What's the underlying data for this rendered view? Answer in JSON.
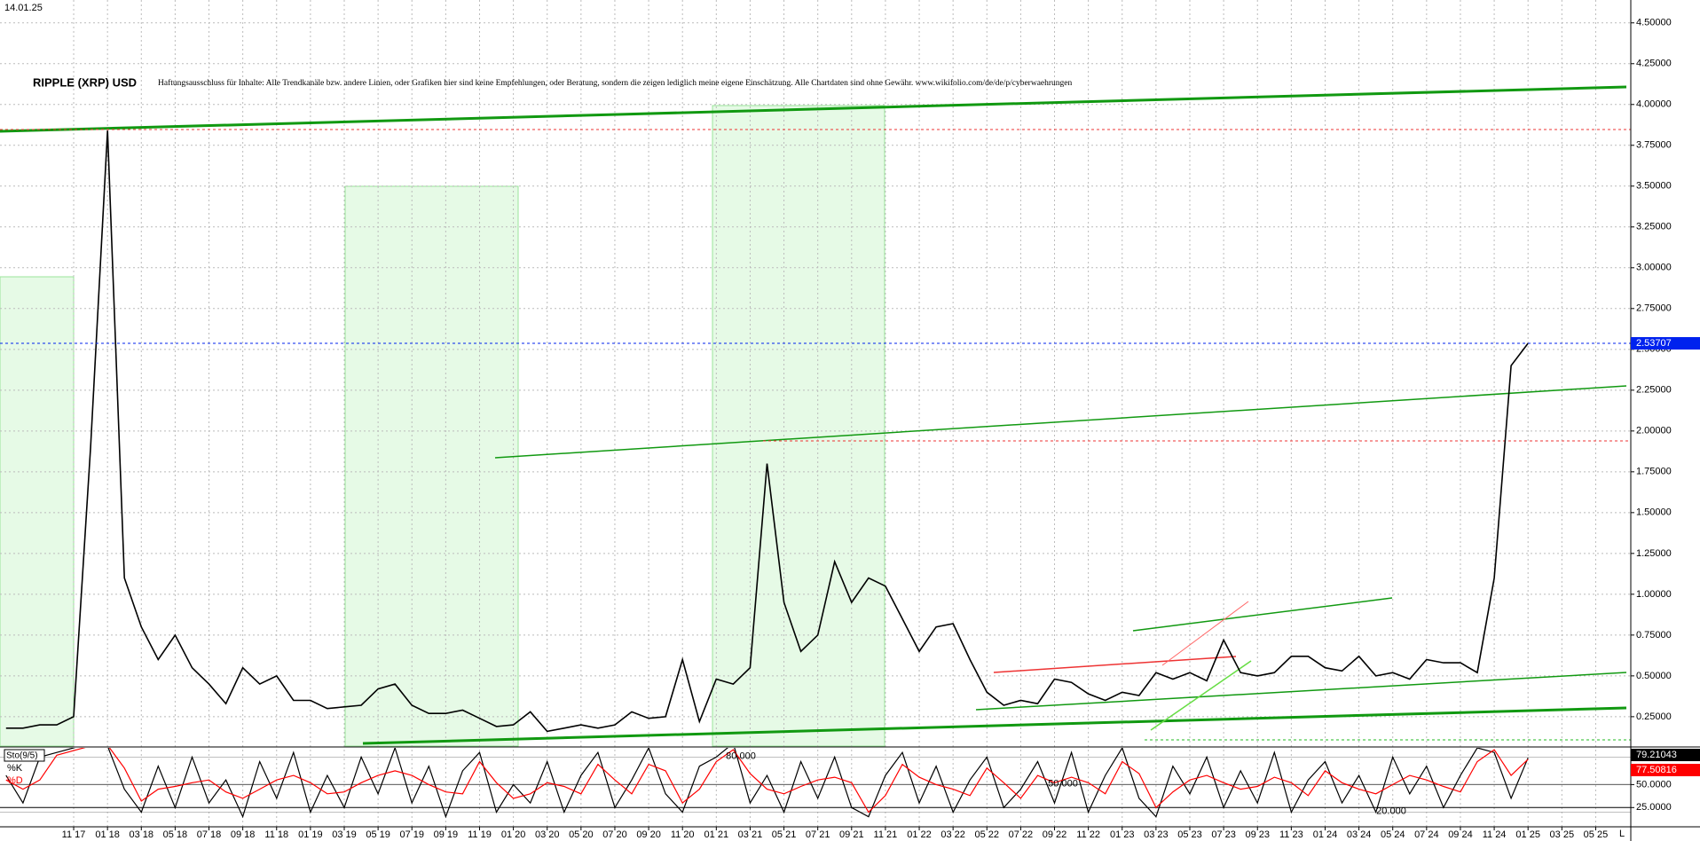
{
  "chart_data": [
    {
      "type": "line",
      "title": "RIPPLE (XRP) USD",
      "subtitle": "Haftungsausschluss für Inhalte: Alle Trendkanäle bzw. andere Linien, oder Grafiken hier sind keine Empfehlungen, oder Beratung, sondern die zeigen lediglich meine eigene Einschätzung. Alle Chartdaten sind ohne Gewähr. www.wikifolio.com/de/de/p/cyberwaehrungen",
      "date": "14.01.25",
      "corner_label": "L",
      "categories": [
        null,
        null,
        null,
        null,
        "11 17",
        null,
        "01 18",
        null,
        "03 18",
        null,
        "05 18",
        null,
        "07 18",
        null,
        "09 18",
        null,
        "11 18",
        null,
        "01 19",
        null,
        "03 19",
        null,
        "05 19",
        null,
        "07 19",
        null,
        "09 19",
        null,
        "11 19",
        null,
        "01 20",
        null,
        "03 20",
        null,
        "05 20",
        null,
        "07 20",
        null,
        "09 20",
        null,
        "11 20",
        null,
        "01 21",
        null,
        "03 21",
        null,
        "05 21",
        null,
        "07 21",
        null,
        "09 21",
        null,
        "11 21",
        null,
        "01 22",
        null,
        "03 22",
        null,
        "05 22",
        null,
        "07 22",
        null,
        "09 22",
        null,
        "11 22",
        null,
        "01 23",
        null,
        "03 23",
        null,
        "05 23",
        null,
        "07 23",
        null,
        "09 23",
        null,
        "11 23",
        null,
        "01 24",
        null,
        "03 24",
        null,
        "05 24",
        null,
        "07 24",
        null,
        "09 24",
        null,
        "11 24",
        null,
        "01 25",
        null,
        "03 25",
        null,
        "05 25"
      ],
      "series": [
        {
          "name": "XRP",
          "color": "#000000",
          "values": [
            0.18,
            0.18,
            0.2,
            0.2,
            0.25,
            1.9,
            3.84,
            1.1,
            0.8,
            0.6,
            0.75,
            0.55,
            0.45,
            0.33,
            0.55,
            0.45,
            0.5,
            0.35,
            0.35,
            0.3,
            0.31,
            0.32,
            0.42,
            0.45,
            0.32,
            0.27,
            0.27,
            0.29,
            0.24,
            0.19,
            0.2,
            0.28,
            0.16,
            0.18,
            0.2,
            0.18,
            0.2,
            0.28,
            0.24,
            0.25,
            0.6,
            0.22,
            0.48,
            0.45,
            0.55,
            1.8,
            0.95,
            0.65,
            0.75,
            1.2,
            0.95,
            1.1,
            1.05,
            0.85,
            0.65,
            0.8,
            0.82,
            0.6,
            0.4,
            0.32,
            0.35,
            0.33,
            0.48,
            0.46,
            0.39,
            0.35,
            0.4,
            0.38,
            0.52,
            0.48,
            0.52,
            0.47,
            0.72,
            0.52,
            0.5,
            0.52,
            0.62,
            0.62,
            0.55,
            0.53,
            0.62,
            0.5,
            0.52,
            0.48,
            0.6,
            0.58,
            0.58,
            0.52,
            1.1,
            2.4,
            2.53707,
            null,
            null,
            null,
            null
          ]
        }
      ],
      "ylim": [
        0.07,
        4.64
      ],
      "yticks": [
        {
          "value": 4.5,
          "label": "4.50000"
        },
        {
          "value": 4.25,
          "label": "4.25000"
        },
        {
          "value": 4,
          "label": "4.00000"
        },
        {
          "value": 3.75,
          "label": "3.75000"
        },
        {
          "value": 3.5,
          "label": "3.50000"
        },
        {
          "value": 3.25,
          "label": "3.25000"
        },
        {
          "value": 3,
          "label": "3.00000"
        },
        {
          "value": 2.75,
          "label": "2.75000"
        },
        {
          "value": 2.5,
          "label": "2.50000"
        },
        {
          "value": 2.25,
          "label": "2.25000"
        },
        {
          "value": 2,
          "label": "2.00000"
        },
        {
          "value": 1.75,
          "label": "1.75000"
        },
        {
          "value": 1.5,
          "label": "1.50000"
        },
        {
          "value": 1.25,
          "label": "1.25000"
        },
        {
          "value": 1,
          "label": "1.00000"
        },
        {
          "value": 0.75,
          "label": "0.75000"
        },
        {
          "value": 0.5,
          "label": "0.50000"
        },
        {
          "value": 0.25,
          "label": "0.25000"
        }
      ],
      "grid": true
    },
    {
      "type": "line",
      "title": "Sto(9/5)",
      "series": [
        {
          "name": "%K",
          "color": "#000000",
          "values": [
            60,
            30,
            80,
            85,
            90,
            95,
            92,
            45,
            20,
            70,
            25,
            80,
            30,
            55,
            15,
            75,
            35,
            85,
            20,
            60,
            25,
            80,
            40,
            90,
            30,
            70,
            15,
            65,
            85,
            20,
            50,
            30,
            75,
            20,
            60,
            85,
            25,
            55,
            90,
            40,
            20,
            70,
            80,
            95,
            30,
            60,
            20,
            75,
            35,
            80,
            25,
            15,
            60,
            85,
            30,
            70,
            20,
            55,
            80,
            25,
            45,
            75,
            30,
            85,
            20,
            60,
            90,
            35,
            15,
            70,
            40,
            80,
            25,
            65,
            30,
            85,
            20,
            55,
            75,
            30,
            60,
            20,
            80,
            40,
            70,
            25,
            60,
            90,
            85,
            35,
            79.21043,
            null,
            null,
            null,
            null
          ]
        },
        {
          "name": "%D",
          "color": "#ff0000",
          "values": [
            55,
            45,
            55,
            82,
            87,
            92,
            93,
            68,
            32,
            45,
            48,
            52,
            55,
            42,
            35,
            45,
            55,
            60,
            52,
            40,
            42,
            52,
            60,
            65,
            60,
            50,
            42,
            40,
            75,
            52,
            35,
            40,
            52,
            48,
            40,
            72,
            55,
            40,
            72,
            65,
            30,
            45,
            75,
            88,
            62,
            45,
            40,
            48,
            55,
            58,
            52,
            20,
            38,
            72,
            58,
            50,
            45,
            38,
            68,
            52,
            35,
            60,
            52,
            58,
            52,
            40,
            75,
            62,
            25,
            42,
            55,
            60,
            52,
            45,
            48,
            58,
            52,
            38,
            65,
            52,
            45,
            40,
            50,
            60,
            55,
            48,
            42,
            75,
            88,
            60,
            77.50816,
            null,
            null,
            null,
            null
          ]
        }
      ],
      "ylim": [
        5,
        90
      ],
      "yticks": [
        {
          "value": 50,
          "label": "50.0000"
        },
        {
          "value": 25,
          "label": "25.0000"
        }
      ],
      "levels": [
        {
          "value": 80,
          "label": "80.000"
        },
        {
          "value": 50,
          "label": "50.000"
        },
        {
          "value": 20,
          "label": "20.000"
        }
      ]
    }
  ]
}
